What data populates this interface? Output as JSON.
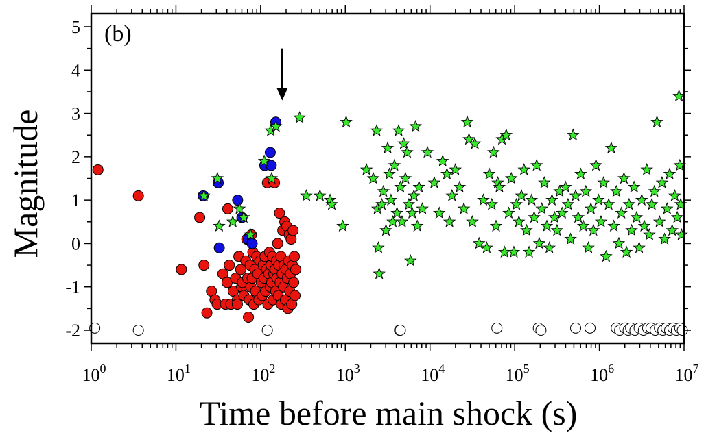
{
  "chart_data": {
    "type": "scatter",
    "title": "",
    "panel_label": "(b)",
    "xlabel": "Time before main shock (s)",
    "ylabel": "Magnitude",
    "x_scale": "log",
    "xlim": [
      1,
      10000000
    ],
    "ylim": [
      -2.3,
      5.3
    ],
    "x_ticks": [
      {
        "base": "10",
        "exp": "0"
      },
      {
        "base": "10",
        "exp": "1"
      },
      {
        "base": "10",
        "exp": "2"
      },
      {
        "base": "10",
        "exp": "3"
      },
      {
        "base": "10",
        "exp": "4"
      },
      {
        "base": "10",
        "exp": "5"
      },
      {
        "base": "10",
        "exp": "6"
      },
      {
        "base": "10",
        "exp": "7"
      }
    ],
    "y_ticks": [
      "-2",
      "-1",
      "0",
      "1",
      "2",
      "3",
      "4",
      "5"
    ],
    "y_tick_values": [
      -2,
      -1,
      0,
      1,
      2,
      3,
      4,
      5
    ],
    "grid": false,
    "annotation": {
      "type": "arrow",
      "x": 180,
      "y_from": 4.5,
      "y_to": 3.3
    },
    "colors": {
      "red_circles": "#e8150f",
      "blue_circles": "#1010e0",
      "green_stars": "#39e82d",
      "open_circles": "#ffffff"
    },
    "series": [
      {
        "marker": "filled-circle",
        "color": "#e8150f",
        "points": [
          [
            1.2,
            1.7
          ],
          [
            3.6,
            1.1
          ],
          [
            11.6,
            -0.6
          ],
          [
            19.1,
            0.6
          ],
          [
            21.4,
            -0.5
          ],
          [
            23.2,
            -1.6
          ],
          [
            26.3,
            -1.1
          ],
          [
            28.9,
            -1.3
          ],
          [
            30.7,
            -1.4
          ],
          [
            35.8,
            -0.7
          ],
          [
            38.5,
            -1.4
          ],
          [
            40.2,
            -0.9
          ],
          [
            40.9,
            0.8
          ],
          [
            42.7,
            -0.5
          ],
          [
            44.6,
            -1.4
          ],
          [
            47.6,
            -1.1
          ],
          [
            50.7,
            -0.8
          ],
          [
            53.1,
            -1.3
          ],
          [
            53.1,
            -1.4
          ],
          [
            55.3,
            -0.3
          ],
          [
            58.1,
            -0.6
          ],
          [
            59.6,
            -1.0
          ],
          [
            61.0,
            -0.9
          ],
          [
            63.4,
            -1.2
          ],
          [
            66.9,
            -0.4
          ],
          [
            68.6,
            0.1
          ],
          [
            70.3,
            -0.8
          ],
          [
            71.8,
            -1.7
          ],
          [
            73.4,
            -1.3
          ],
          [
            75.1,
            -0.5
          ],
          [
            76.5,
            -1.0
          ],
          [
            77.8,
            0.2
          ],
          [
            79.4,
            -0.8
          ],
          [
            80.9,
            -0.2
          ],
          [
            83.2,
            -1.4
          ],
          [
            85.5,
            -0.6
          ],
          [
            87.3,
            -1.1
          ],
          [
            89.9,
            -0.3
          ],
          [
            92.4,
            -0.7
          ],
          [
            95.0,
            -1.3
          ],
          [
            98.2,
            -0.4
          ],
          [
            101.5,
            -0.9
          ],
          [
            104.7,
            -1.2
          ],
          [
            107.3,
            -0.5
          ],
          [
            110.1,
            -0.8
          ],
          [
            112.4,
            -0.3
          ],
          [
            115.0,
            -1.1
          ],
          [
            117.6,
            -0.6
          ],
          [
            120.3,
            1.4
          ],
          [
            122.1,
            -1.4
          ],
          [
            124.6,
            -0.7
          ],
          [
            127.3,
            -0.2
          ],
          [
            129.7,
            -1.0
          ],
          [
            132.5,
            -0.5
          ],
          [
            134.8,
            -0.9
          ],
          [
            137.6,
            -0.3
          ],
          [
            140.2,
            -1.3
          ],
          [
            143.1,
            -0.7
          ],
          [
            145.9,
            1.4
          ],
          [
            148.3,
            -0.6
          ],
          [
            150.7,
            -1.1
          ],
          [
            153.4,
            -0.4
          ],
          [
            156.2,
            -0.8
          ],
          [
            159.0,
            0.0
          ],
          [
            161.5,
            -1.2
          ],
          [
            164.3,
            -0.5
          ],
          [
            167.1,
            0.7
          ],
          [
            170.0,
            -0.9
          ],
          [
            173.3,
            -0.3
          ],
          [
            176.2,
            -1.4
          ],
          [
            179.5,
            -0.7
          ],
          [
            182.8,
            0.3
          ],
          [
            186.1,
            -1.0
          ],
          [
            189.4,
            -0.5
          ],
          [
            192.7,
            0.5
          ],
          [
            196.0,
            -1.3
          ],
          [
            199.6,
            -0.6
          ],
          [
            203.1,
            0.4
          ],
          [
            206.7,
            -0.8
          ],
          [
            210.2,
            -1.5
          ],
          [
            214.0,
            -0.4
          ],
          [
            217.8,
            0.2
          ],
          [
            221.3,
            -1.1
          ],
          [
            225.1,
            -0.7
          ],
          [
            229.0,
            0.1
          ],
          [
            233.2,
            -1.4
          ],
          [
            237.4,
            -0.5
          ],
          [
            241.6,
            0.3
          ],
          [
            246.1,
            -0.9
          ],
          [
            250.3,
            -0.3
          ],
          [
            255.0,
            -1.2
          ],
          [
            259.5,
            -0.6
          ]
        ]
      },
      {
        "marker": "filled-circle",
        "color": "#1010e0",
        "points": [
          [
            21.0,
            1.1
          ],
          [
            31.6,
            1.4
          ],
          [
            32.5,
            -0.1
          ],
          [
            53.5,
            1.0
          ],
          [
            60.2,
            0.6
          ],
          [
            71.4,
            0.1
          ],
          [
            79.4,
            0.0
          ],
          [
            112.0,
            1.8
          ],
          [
            130.0,
            2.1
          ],
          [
            133.5,
            1.8
          ],
          [
            151.0,
            2.8
          ]
        ]
      },
      {
        "marker": "star",
        "color": "#39e82d",
        "points": [
          [
            21.4,
            1.1
          ],
          [
            30.9,
            1.5
          ],
          [
            32.4,
            0.4
          ],
          [
            46.8,
            0.5
          ],
          [
            56.2,
            0.8
          ],
          [
            63.1,
            0.6
          ],
          [
            75.9,
            0.2
          ],
          [
            110.2,
            1.9
          ],
          [
            134.9,
            1.5
          ],
          [
            131.8,
            2.6
          ],
          [
            151.4,
            2.7
          ],
          [
            288.4,
            2.9
          ],
          [
            346.7,
            1.1
          ],
          [
            501.2,
            1.1
          ],
          [
            660.7,
            1.0
          ],
          [
            692.0,
            0.9
          ],
          [
            931.4,
            0.4
          ],
          [
            1023.3,
            2.8
          ],
          [
            1778.3,
            1.7
          ],
          [
            2137.9,
            1.5
          ],
          [
            2344.2,
            2.6
          ],
          [
            2398.8,
            0.8
          ],
          [
            2454.7,
            -0.1
          ],
          [
            2511.9,
            -0.7
          ],
          [
            2691.5,
            0.9
          ],
          [
            2818.4,
            1.2
          ],
          [
            3019.0,
            0.3
          ],
          [
            3162.3,
            2.2
          ],
          [
            3311.3,
            1.6
          ],
          [
            3467.4,
            1.0
          ],
          [
            3630.8,
            0.5
          ],
          [
            3801.9,
            1.8
          ],
          [
            4073.8,
            0.7
          ],
          [
            4265.8,
            2.6
          ],
          [
            4466.8,
            1.3
          ],
          [
            4677.4,
            0.5
          ],
          [
            4897.8,
            2.3
          ],
          [
            5128.6,
            1.5
          ],
          [
            5370.3,
            2.1
          ],
          [
            5623.4,
            0.9
          ],
          [
            5888.4,
            -0.4
          ],
          [
            6165.9,
            0.7
          ],
          [
            6456.5,
            1.1
          ],
          [
            6760.8,
            2.7
          ],
          [
            7079.5,
            0.4
          ],
          [
            7413.1,
            1.3
          ],
          [
            8128.3,
            0.8
          ],
          [
            9332.5,
            2.1
          ],
          [
            11220,
            1.4
          ],
          [
            12882,
            0.7
          ],
          [
            14125,
            1.9
          ],
          [
            15849,
            1.6
          ],
          [
            16982,
            0.5
          ],
          [
            18197,
            1.1
          ],
          [
            19953,
            1.7
          ],
          [
            22387,
            1.3
          ],
          [
            25119,
            0.8
          ],
          [
            27542,
            2.8
          ],
          [
            28840,
            2.4
          ],
          [
            31623,
            0.5
          ],
          [
            33884,
            2.3
          ],
          [
            38019,
            0.0
          ],
          [
            42658,
            1.0
          ],
          [
            46774,
            -0.1
          ],
          [
            50119,
            1.6
          ],
          [
            53703,
            0.9
          ],
          [
            56234,
            2.1
          ],
          [
            60256,
            0.4
          ],
          [
            63096,
            1.4
          ],
          [
            66069,
            1.3
          ],
          [
            70795,
            2.4
          ],
          [
            75858,
            -0.2
          ],
          [
            79433,
            2.5
          ],
          [
            85114,
            0.7
          ],
          [
            91201,
            1.5
          ],
          [
            97724,
            -0.2
          ],
          [
            104713,
            0.9
          ],
          [
            112202,
            0.5
          ],
          [
            120226,
            1.1
          ],
          [
            128825,
            1.7
          ],
          [
            138038,
            0.3
          ],
          [
            147911,
            -0.2
          ],
          [
            158489,
            1.0
          ],
          [
            169824,
            0.6
          ],
          [
            181970,
            1.8
          ],
          [
            194984,
            0.0
          ],
          [
            208930,
            0.8
          ],
          [
            223872,
            1.4
          ],
          [
            239883,
            0.4
          ],
          [
            257040,
            -0.1
          ],
          [
            275423,
            1.0
          ],
          [
            295121,
            0.6
          ],
          [
            316228,
            0.3
          ],
          [
            338844,
            1.2
          ],
          [
            363078,
            0.7
          ],
          [
            398107,
            1.3
          ],
          [
            426580,
            0.9
          ],
          [
            457088,
            0.1
          ],
          [
            489779,
            2.5
          ],
          [
            524807,
            1.1
          ],
          [
            562341,
            0.6
          ],
          [
            602560,
            1.6
          ],
          [
            645654,
            0.4
          ],
          [
            691831,
            1.2
          ],
          [
            741310,
            -0.1
          ],
          [
            794328,
            0.8
          ],
          [
            851138,
            0.3
          ],
          [
            912011,
            1.8
          ],
          [
            977237,
            1.0
          ],
          [
            1047129,
            0.5
          ],
          [
            1122018,
            1.4
          ],
          [
            1202264,
            -0.3
          ],
          [
            1288250,
            0.9
          ],
          [
            1380384,
            2.2
          ],
          [
            1479108,
            0.4
          ],
          [
            1584893,
            1.2
          ],
          [
            1698244,
            0.0
          ],
          [
            1819701,
            0.7
          ],
          [
            1949845,
            1.5
          ],
          [
            2089296,
            -0.2
          ],
          [
            2238721,
            0.9
          ],
          [
            2398833,
            0.3
          ],
          [
            2570396,
            1.3
          ],
          [
            2754229,
            0.6
          ],
          [
            2951209,
            -0.1
          ],
          [
            3162278,
            1.0
          ],
          [
            3388442,
            0.4
          ],
          [
            3630781,
            1.7
          ],
          [
            3890451,
            0.2
          ],
          [
            4168694,
            0.9
          ],
          [
            4466836,
            1.2
          ],
          [
            4786301,
            2.8
          ],
          [
            5128614,
            0.5
          ],
          [
            5495409,
            1.4
          ],
          [
            5888437,
            0.1
          ],
          [
            6309573,
            0.8
          ],
          [
            6760830,
            1.6
          ],
          [
            7244360,
            0.3
          ],
          [
            7762471,
            1.1
          ],
          [
            8317638,
            0.6
          ],
          [
            8709636,
            3.4
          ],
          [
            8912509,
            1.8
          ],
          [
            9120108,
            0.9
          ],
          [
            9332543,
            0.2
          ]
        ]
      },
      {
        "marker": "open-circle",
        "color": "#ffffff",
        "points": [
          [
            1.1,
            -1.95
          ],
          [
            3.6,
            -2.0
          ],
          [
            120,
            -2.0
          ],
          [
            4365,
            -2.0
          ],
          [
            4467,
            -2.0
          ],
          [
            61660,
            -1.95
          ],
          [
            190546,
            -1.95
          ],
          [
            204174,
            -2.0
          ],
          [
            524807,
            -1.95
          ],
          [
            776247,
            -1.95
          ],
          [
            1584893,
            -1.95
          ],
          [
            1737801,
            -2.0
          ],
          [
            1995262,
            -1.95
          ],
          [
            2187762,
            -2.0
          ],
          [
            2344229,
            -1.95
          ],
          [
            2630268,
            -2.0
          ],
          [
            2951209,
            -1.95
          ],
          [
            3311311,
            -2.0
          ],
          [
            3715352,
            -1.95
          ],
          [
            4073803,
            -1.95
          ],
          [
            4570882,
            -2.0
          ],
          [
            5128614,
            -1.95
          ],
          [
            5623413,
            -2.0
          ],
          [
            6165950,
            -1.95
          ],
          [
            6760830,
            -2.0
          ],
          [
            7413102,
            -1.95
          ],
          [
            8128305,
            -2.0
          ],
          [
            8912509,
            -1.95
          ],
          [
            9549926,
            -2.0
          ]
        ]
      }
    ]
  }
}
